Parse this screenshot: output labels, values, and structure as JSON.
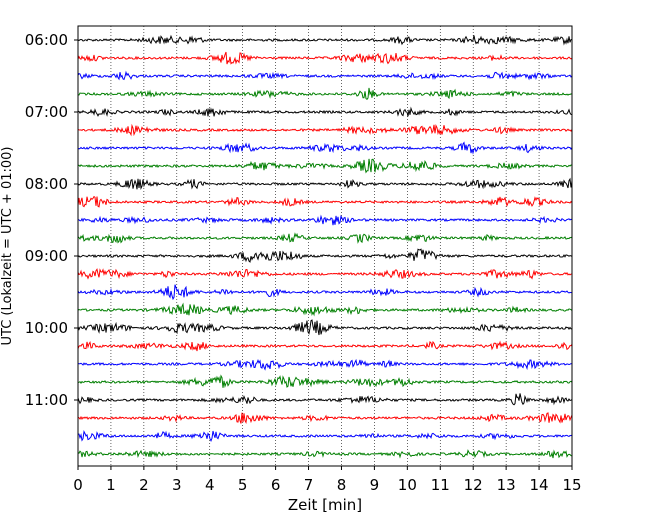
{
  "chart_data": {
    "type": "line",
    "title": "",
    "xlabel": "Zeit  [min]",
    "ylabel": "UTC (Lokalzeit = UTC + 01:00)",
    "xlim": [
      0,
      15
    ],
    "x_ticks": [
      "0",
      "1",
      "2",
      "3",
      "4",
      "5",
      "6",
      "7",
      "8",
      "9",
      "10",
      "11",
      "12",
      "13",
      "14",
      "15"
    ],
    "y_tick_labels": [
      "06:00",
      "07:00",
      "08:00",
      "09:00",
      "10:00",
      "11:00"
    ],
    "traces_per_hour": 4,
    "trace_start_times": [
      "06:00",
      "06:15",
      "06:30",
      "06:45",
      "07:00",
      "07:15",
      "07:30",
      "07:45",
      "08:00",
      "08:15",
      "08:30",
      "08:45",
      "09:00",
      "09:15",
      "09:30",
      "09:45",
      "10:00",
      "10:15",
      "10:30",
      "10:45",
      "11:00",
      "11:15",
      "11:30",
      "11:45"
    ],
    "trace_colors": [
      "#000000",
      "#ff0000",
      "#0000ff",
      "#007f00"
    ],
    "grid": "vertical dotted lines at each minute",
    "legend": "none"
  }
}
